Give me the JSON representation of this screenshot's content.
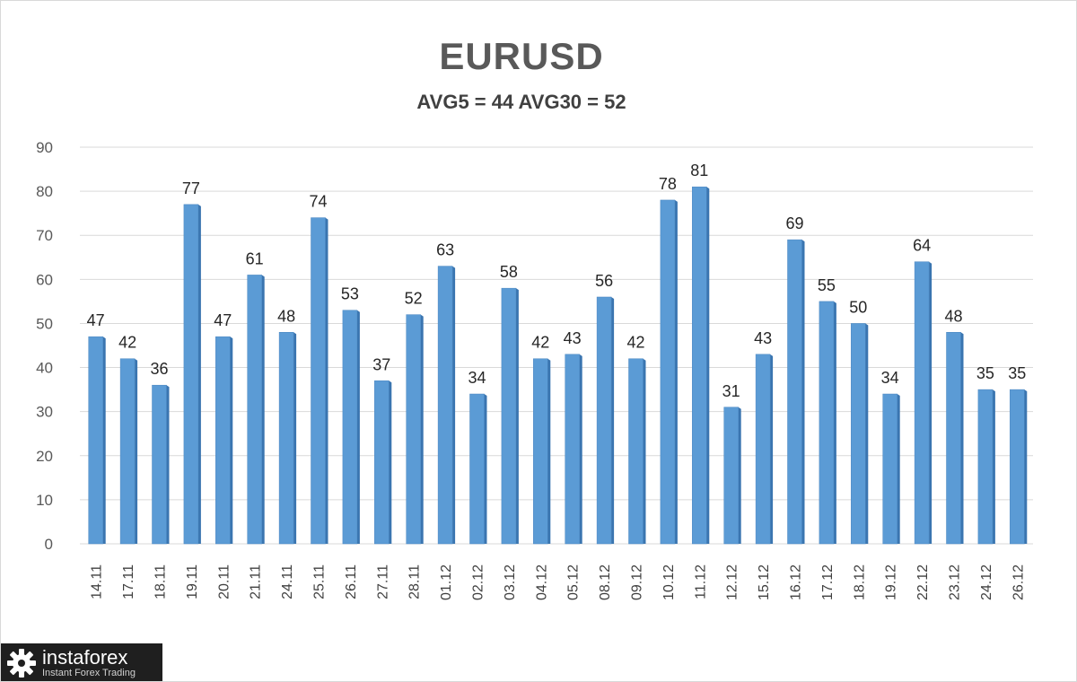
{
  "chart_data": {
    "type": "bar",
    "title": "EURUSD",
    "subtitle": "AVG5 = 44 AVG30 = 52",
    "categories": [
      "14.11",
      "17.11",
      "18.11",
      "19.11",
      "20.11",
      "21.11",
      "24.11",
      "25.11",
      "26.11",
      "27.11",
      "28.11",
      "01.12",
      "02.12",
      "03.12",
      "04.12",
      "05.12",
      "08.12",
      "09.12",
      "10.12",
      "11.12",
      "12.12",
      "15.12",
      "16.12",
      "17.12",
      "18.12",
      "19.12",
      "22.12",
      "23.12",
      "24.12",
      "26.12"
    ],
    "values": [
      47,
      42,
      36,
      77,
      47,
      61,
      48,
      74,
      53,
      37,
      52,
      63,
      34,
      58,
      42,
      43,
      56,
      42,
      78,
      81,
      31,
      43,
      69,
      55,
      50,
      34,
      64,
      48,
      35,
      35
    ],
    "ylim": [
      0,
      90
    ],
    "yticks": [
      0,
      10,
      20,
      30,
      40,
      50,
      60,
      70,
      80,
      90
    ],
    "grid": true,
    "data_labels": true,
    "bar_color": "#5b9bd5",
    "bar_side_color": "#3a75b0"
  },
  "logo": {
    "name": "instaforex",
    "tagline": "Instant Forex Trading",
    "icon": "gear-icon"
  }
}
